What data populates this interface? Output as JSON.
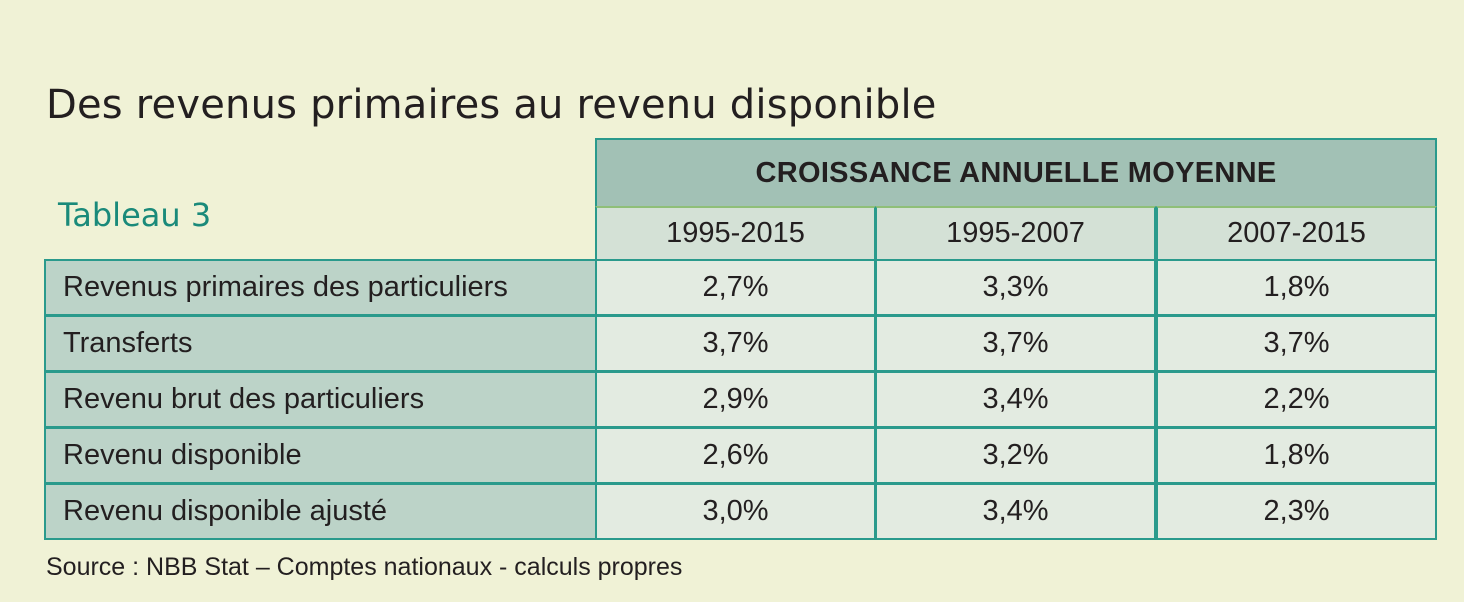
{
  "title": "Des revenus primaires au revenu disponible",
  "subtitle": "Tableau 3",
  "table": {
    "group_header": "CROISSANCE ANNUELLE MOYENNE",
    "columns": [
      "1995-2015",
      "1995-2007",
      "2007-2015"
    ],
    "rows": [
      {
        "label": "Revenus primaires des particuliers",
        "values": [
          "2,7%",
          "3,3%",
          "1,8%"
        ]
      },
      {
        "label": "Transferts",
        "values": [
          "3,7%",
          "3,7%",
          "3,7%"
        ]
      },
      {
        "label": "Revenu brut des particuliers",
        "values": [
          "2,9%",
          "3,4%",
          "2,2%"
        ]
      },
      {
        "label": "Revenu disponible",
        "values": [
          "2,6%",
          "3,2%",
          "1,8%"
        ]
      },
      {
        "label": "Revenu disponible ajusté",
        "values": [
          "3,0%",
          "3,4%",
          "2,3%"
        ]
      }
    ]
  },
  "source": "Source : NBB Stat – Comptes nationaux - calculs propres",
  "colors": {
    "background": "#f0f2d6",
    "accent": "#1a8a7a",
    "header_fill": "#a2c1b5",
    "label_fill": "#bcd3c8",
    "value_fill": "#e3ebe1",
    "border": "#2a9a8c"
  }
}
